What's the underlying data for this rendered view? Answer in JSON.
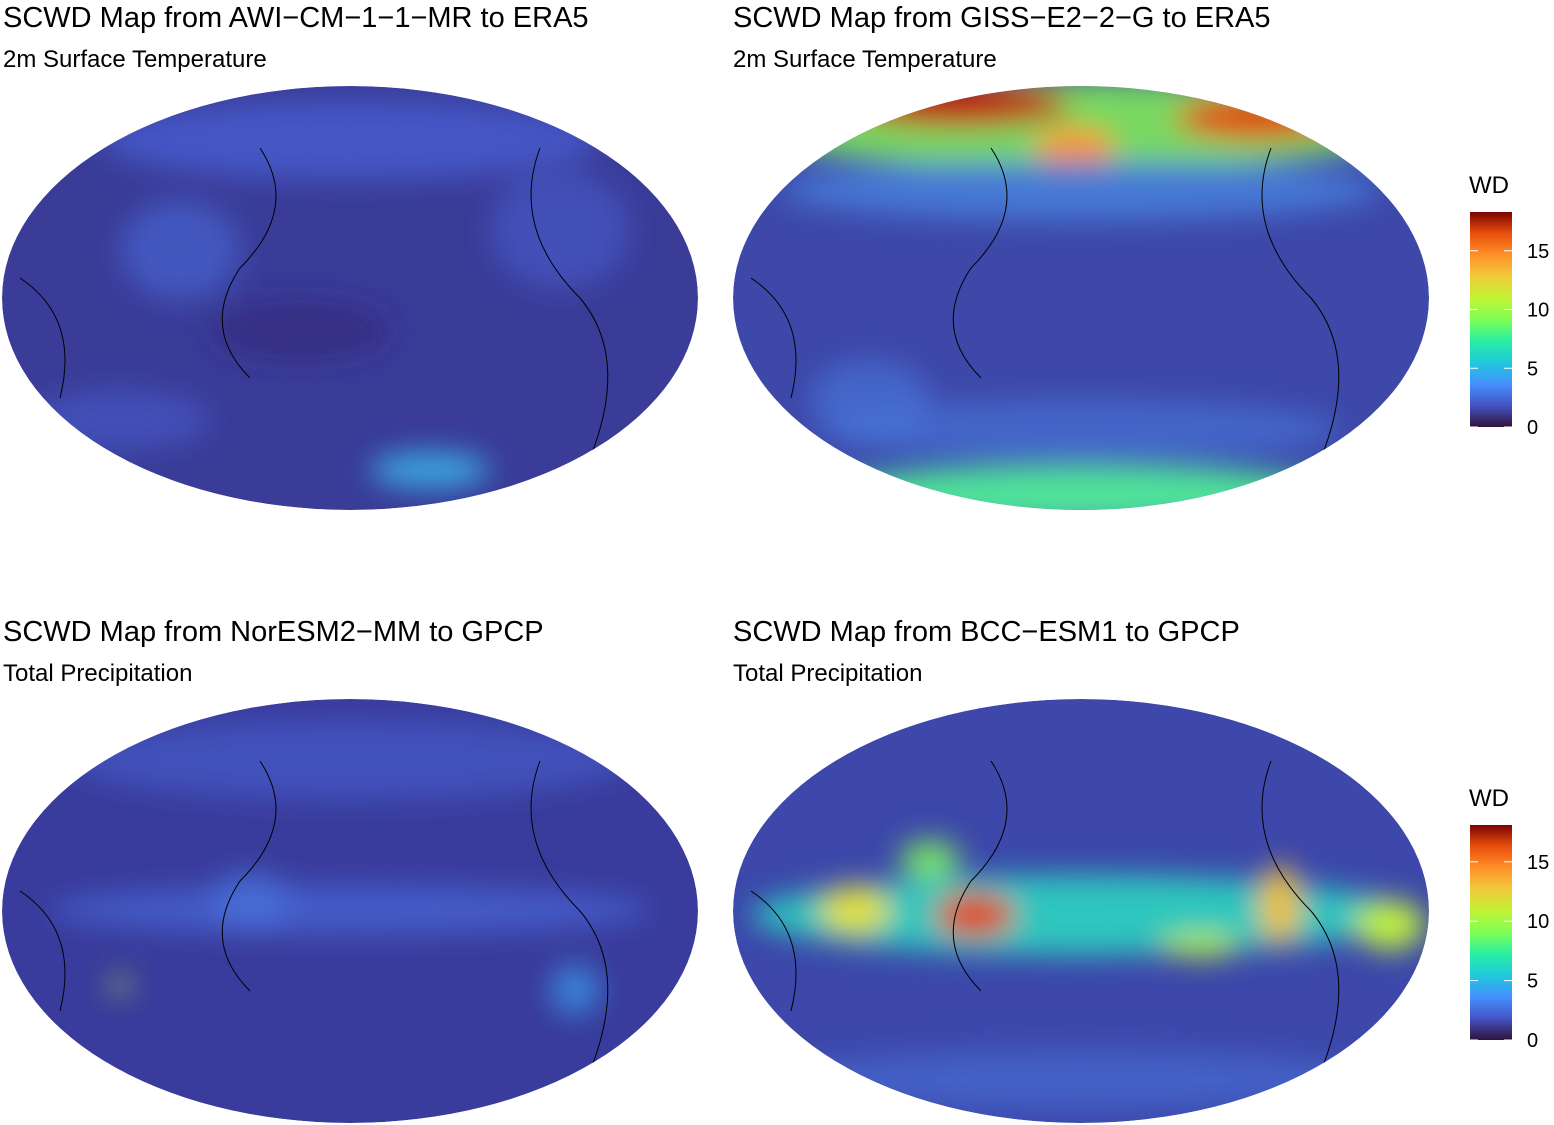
{
  "panels": [
    {
      "title": "SCWD Map from AWI−CM−1−1−MR to ERA5",
      "subtitle": "2m Surface Temperature"
    },
    {
      "title": "SCWD Map from GISS−E2−2−G to ERA5",
      "subtitle": "2m Surface Temperature"
    },
    {
      "title": "SCWD Map from NorESM2−MM to GPCP",
      "subtitle": "Total Precipitation"
    },
    {
      "title": "SCWD Map from BCC−ESM1 to GPCP",
      "subtitle": "Total Precipitation"
    }
  ],
  "legends": [
    {
      "title": "WD",
      "range": [
        0,
        18.3
      ],
      "ticks": [
        0,
        5,
        10,
        15
      ]
    },
    {
      "title": "WD",
      "range": [
        0,
        18.1
      ],
      "ticks": [
        0,
        5,
        10,
        15
      ]
    }
  ]
}
